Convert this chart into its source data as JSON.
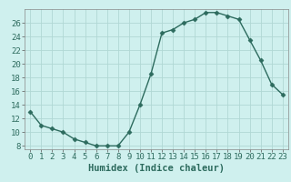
{
  "x": [
    0,
    1,
    2,
    3,
    4,
    5,
    6,
    7,
    8,
    9,
    10,
    11,
    12,
    13,
    14,
    15,
    16,
    17,
    18,
    19,
    20,
    21,
    22,
    23
  ],
  "y": [
    13,
    11,
    10.5,
    10,
    9,
    8.5,
    8,
    8,
    8,
    10,
    14,
    18.5,
    24.5,
    25,
    26,
    26.5,
    27.5,
    27.5,
    27,
    26.5,
    23.5,
    20.5,
    17,
    15.5
  ],
  "xlabel": "Humidex (Indice chaleur)",
  "xlim": [
    -0.5,
    23.5
  ],
  "ylim": [
    7.5,
    28
  ],
  "yticks": [
    8,
    10,
    12,
    14,
    16,
    18,
    20,
    22,
    24,
    26
  ],
  "xticks": [
    0,
    1,
    2,
    3,
    4,
    5,
    6,
    7,
    8,
    9,
    10,
    11,
    12,
    13,
    14,
    15,
    16,
    17,
    18,
    19,
    20,
    21,
    22,
    23
  ],
  "line_color": "#2d6b5e",
  "marker": "D",
  "marker_size": 2.5,
  "bg_color": "#cff0ee",
  "grid_color": "#b0d8d4",
  "tick_label_fontsize": 6.5,
  "xlabel_fontsize": 7.5
}
